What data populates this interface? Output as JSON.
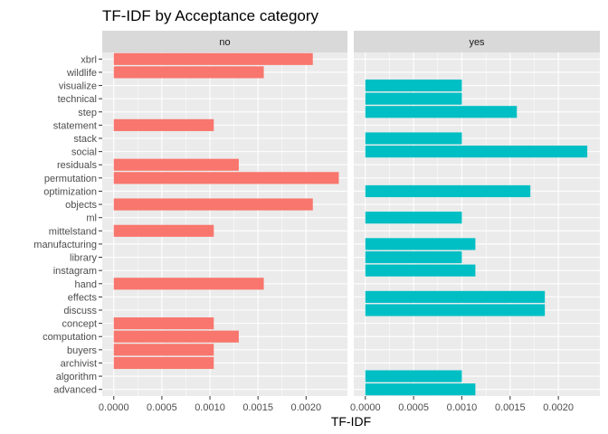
{
  "chart_data": {
    "type": "bar",
    "orientation": "horizontal",
    "title": "TF-IDF by Acceptance category",
    "xlabel": "TF-IDF",
    "ylabel": "",
    "xlim": [
      -0.00012,
      0.00243
    ],
    "xticks": [
      0.0,
      0.0005,
      0.001,
      0.0015,
      0.002
    ],
    "xtick_labels": [
      "0.0000",
      "0.0005",
      "0.0010",
      "0.0015",
      "0.0020"
    ],
    "grid": true,
    "categories": [
      "xbrl",
      "wildlife",
      "visualize",
      "technical",
      "step",
      "statement",
      "stack",
      "social",
      "residuals",
      "permutation",
      "optimization",
      "objects",
      "ml",
      "mittelstand",
      "manufacturing",
      "library",
      "instagram",
      "hand",
      "effects",
      "discuss",
      "concept",
      "computation",
      "buyers",
      "archivist",
      "algorithm",
      "advanced"
    ],
    "facets": [
      {
        "label": "no",
        "color": "#F8766D",
        "values": [
          0.00207,
          0.00156,
          null,
          null,
          null,
          0.00104,
          null,
          null,
          0.0013,
          0.00234,
          null,
          0.00207,
          null,
          0.00104,
          null,
          null,
          null,
          0.00156,
          null,
          null,
          0.00104,
          0.0013,
          0.00104,
          0.00104,
          null,
          null
        ]
      },
      {
        "label": "yes",
        "color": "#00BFC4",
        "values": [
          null,
          null,
          0.001,
          0.001,
          0.00157,
          null,
          0.001,
          0.0023,
          null,
          null,
          0.00171,
          null,
          0.001,
          null,
          0.00114,
          0.001,
          0.00114,
          null,
          0.00186,
          0.00186,
          null,
          null,
          null,
          null,
          0.001,
          0.00114
        ]
      }
    ]
  }
}
